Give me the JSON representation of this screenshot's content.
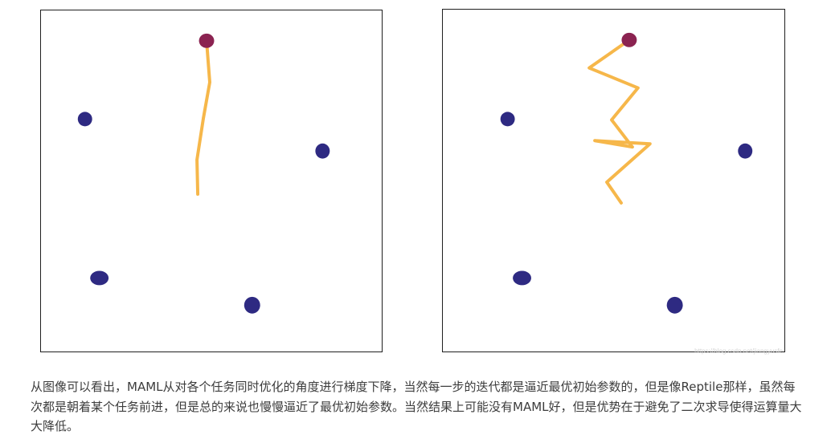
{
  "figure": {
    "left_panel": {
      "path_color": "#f5b340",
      "start_point_color": "#8b2351",
      "task_point_color": "#2e2a82"
    },
    "right_panel": {
      "path_color": "#f5b340",
      "start_point_color": "#8b2351",
      "task_point_color": "#2e2a82",
      "watermark": "https://blog.csdn.net/jiangyusfe"
    }
  },
  "caption": {
    "text": "从图像可以看出，MAML从对各个任务同时优化的角度进行梯度下降，当然每一步的迭代都是逼近最优初始参数的，但是像Reptile那样，虽然每次都是朝着某个任务前进，但是总的来说也慢慢逼近了最优初始参数。当然结果上可能没有MAML好，但是优势在于避免了二次求导使得运算量大大降低。"
  }
}
